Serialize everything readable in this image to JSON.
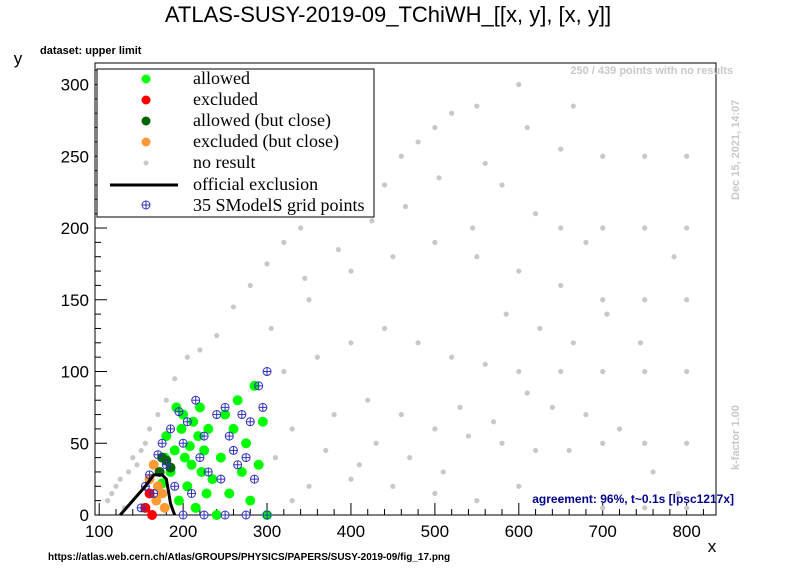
{
  "title": "ATLAS-SUSY-2019-09_TChiWH_[[x, y], [x, y]]",
  "dataset_label": "dataset: upper limit",
  "no_results_note": "250 / 439 points with no results",
  "date_note": "Dec 15, 2021, 14:07",
  "kfactor_note": "k-factor 1.00",
  "agreement_note": "agreement: 96%, t~0.1s [lpsc1217x]",
  "url": "https://atlas.web.cern.ch/Atlas/GROUPS/PHYSICS/PAPERS/SUSY-2019-09/fig_17.png",
  "colors": {
    "allowed": "#00ff00",
    "excluded": "#ff0000",
    "allowed_close": "#006400",
    "excluded_close": "#ff9933",
    "no_result": "#c8c8c8",
    "official": "#000000",
    "grid": "#3333bb"
  },
  "chart_data": {
    "type": "scatter",
    "xlabel": "x",
    "ylabel": "y",
    "xlim": [
      95,
      835
    ],
    "ylim": [
      0,
      315
    ],
    "xticks": [
      100,
      200,
      300,
      400,
      500,
      600,
      700,
      800
    ],
    "yticks": [
      0,
      50,
      100,
      150,
      200,
      250,
      300
    ],
    "legend_position": "top-left",
    "series": [
      {
        "name": "allowed",
        "key": "allowed",
        "points": [
          [
            175,
            22
          ],
          [
            178,
            40
          ],
          [
            185,
            30
          ],
          [
            190,
            45
          ],
          [
            195,
            10
          ],
          [
            198,
            60
          ],
          [
            200,
            70
          ],
          [
            205,
            20
          ],
          [
            208,
            48
          ],
          [
            210,
            35
          ],
          [
            212,
            65
          ],
          [
            215,
            5
          ],
          [
            218,
            55
          ],
          [
            220,
            75
          ],
          [
            222,
            30
          ],
          [
            225,
            45
          ],
          [
            230,
            60
          ],
          [
            235,
            25
          ],
          [
            240,
            0
          ],
          [
            245,
            40
          ],
          [
            250,
            70
          ],
          [
            255,
            15
          ],
          [
            260,
            60
          ],
          [
            265,
            80
          ],
          [
            270,
            30
          ],
          [
            275,
            50
          ],
          [
            280,
            10
          ],
          [
            285,
            90
          ],
          [
            290,
            35
          ],
          [
            295,
            65
          ],
          [
            300,
            0
          ],
          [
            180,
            55
          ],
          [
            192,
            75
          ],
          [
            202,
            40
          ],
          [
            228,
            15
          ]
        ]
      },
      {
        "name": "excluded",
        "key": "excluded",
        "points": [
          [
            155,
            5
          ],
          [
            160,
            15
          ],
          [
            163,
            0
          ]
        ]
      },
      {
        "name": "allowed (but close)",
        "key": "allowed_close",
        "points": [
          [
            175,
            40
          ],
          [
            180,
            38
          ],
          [
            185,
            33
          ],
          [
            172,
            30
          ]
        ]
      },
      {
        "name": "excluded (but close)",
        "key": "excluded_close",
        "points": [
          [
            160,
            25
          ],
          [
            165,
            35
          ],
          [
            168,
            10
          ],
          [
            170,
            20
          ],
          [
            175,
            15
          ],
          [
            178,
            5
          ]
        ]
      },
      {
        "name": "no result",
        "key": "no_result",
        "points": [
          [
            110,
            10
          ],
          [
            115,
            15
          ],
          [
            120,
            20
          ],
          [
            125,
            25
          ],
          [
            130,
            5
          ],
          [
            135,
            30
          ],
          [
            140,
            40
          ],
          [
            145,
            35
          ],
          [
            150,
            45
          ],
          [
            155,
            50
          ],
          [
            160,
            60
          ],
          [
            170,
            70
          ],
          [
            180,
            80
          ],
          [
            190,
            95
          ],
          [
            205,
            110
          ],
          [
            220,
            115
          ],
          [
            240,
            125
          ],
          [
            260,
            145
          ],
          [
            280,
            160
          ],
          [
            300,
            175
          ],
          [
            320,
            190
          ],
          [
            340,
            200
          ],
          [
            360,
            215
          ],
          [
            380,
            225
          ],
          [
            400,
            230
          ],
          [
            420,
            240
          ],
          [
            440,
            230
          ],
          [
            460,
            250
          ],
          [
            480,
            260
          ],
          [
            500,
            270
          ],
          [
            520,
            280
          ],
          [
            550,
            285
          ],
          [
            600,
            300
          ],
          [
            610,
            270
          ],
          [
            650,
            255
          ],
          [
            665,
            285
          ],
          [
            700,
            250
          ],
          [
            750,
            250
          ],
          [
            800,
            250
          ],
          [
            560,
            245
          ],
          [
            580,
            230
          ],
          [
            620,
            210
          ],
          [
            650,
            200
          ],
          [
            680,
            190
          ],
          [
            700,
            200
          ],
          [
            750,
            200
          ],
          [
            800,
            200
          ],
          [
            350,
            150
          ],
          [
            400,
            170
          ],
          [
            450,
            180
          ],
          [
            500,
            190
          ],
          [
            550,
            180
          ],
          [
            600,
            170
          ],
          [
            650,
            160
          ],
          [
            700,
            150
          ],
          [
            750,
            150
          ],
          [
            800,
            150
          ],
          [
            320,
            100
          ],
          [
            360,
            110
          ],
          [
            400,
            120
          ],
          [
            440,
            130
          ],
          [
            480,
            120
          ],
          [
            520,
            110
          ],
          [
            560,
            105
          ],
          [
            600,
            100
          ],
          [
            650,
            100
          ],
          [
            700,
            100
          ],
          [
            750,
            100
          ],
          [
            800,
            100
          ],
          [
            330,
            60
          ],
          [
            380,
            70
          ],
          [
            420,
            80
          ],
          [
            460,
            70
          ],
          [
            500,
            60
          ],
          [
            540,
            55
          ],
          [
            580,
            50
          ],
          [
            620,
            45
          ],
          [
            660,
            45
          ],
          [
            700,
            50
          ],
          [
            750,
            50
          ],
          [
            800,
            50
          ],
          [
            350,
            20
          ],
          [
            400,
            25
          ],
          [
            450,
            20
          ],
          [
            500,
            15
          ],
          [
            550,
            10
          ],
          [
            600,
            20
          ],
          [
            650,
            10
          ],
          [
            700,
            5
          ],
          [
            750,
            5
          ],
          [
            800,
            5
          ],
          [
            310,
            40
          ],
          [
            330,
            10
          ],
          [
            370,
            45
          ],
          [
            410,
            35
          ],
          [
            430,
            50
          ],
          [
            470,
            40
          ],
          [
            510,
            30
          ],
          [
            530,
            75
          ],
          [
            570,
            65
          ],
          [
            610,
            85
          ],
          [
            640,
            75
          ],
          [
            680,
            70
          ],
          [
            720,
            60
          ],
          [
            760,
            30
          ],
          [
            790,
            15
          ],
          [
            305,
            130
          ],
          [
            345,
            165
          ],
          [
            385,
            185
          ],
          [
            425,
            205
          ],
          [
            465,
            215
          ],
          [
            505,
            235
          ],
          [
            545,
            200
          ],
          [
            585,
            140
          ],
          [
            625,
            130
          ],
          [
            665,
            120
          ],
          [
            705,
            140
          ],
          [
            745,
            120
          ],
          [
            785,
            180
          ]
        ]
      },
      {
        "name": "35 SModelS grid points",
        "key": "grid",
        "points": [
          [
            150,
            5
          ],
          [
            155,
            20
          ],
          [
            160,
            28
          ],
          [
            165,
            15
          ],
          [
            170,
            42
          ],
          [
            175,
            50
          ],
          [
            180,
            35
          ],
          [
            185,
            60
          ],
          [
            190,
            20
          ],
          [
            195,
            72
          ],
          [
            200,
            50
          ],
          [
            205,
            65
          ],
          [
            210,
            15
          ],
          [
            215,
            80
          ],
          [
            220,
            40
          ],
          [
            225,
            55
          ],
          [
            230,
            30
          ],
          [
            240,
            70
          ],
          [
            245,
            25
          ],
          [
            250,
            75
          ],
          [
            255,
            55
          ],
          [
            260,
            45
          ],
          [
            265,
            35
          ],
          [
            270,
            70
          ],
          [
            275,
            40
          ],
          [
            280,
            65
          ],
          [
            285,
            25
          ],
          [
            290,
            90
          ],
          [
            295,
            75
          ],
          [
            300,
            100
          ],
          [
            225,
            0
          ],
          [
            250,
            0
          ],
          [
            275,
            0
          ],
          [
            300,
            0
          ],
          [
            200,
            0
          ]
        ]
      }
    ],
    "official_exclusion": {
      "name": "official exclusion",
      "x": [
        125,
        140,
        155,
        165,
        175,
        180,
        183,
        185,
        188,
        190
      ],
      "y": [
        0,
        10,
        20,
        28,
        28,
        25,
        15,
        8,
        3,
        0
      ]
    }
  }
}
